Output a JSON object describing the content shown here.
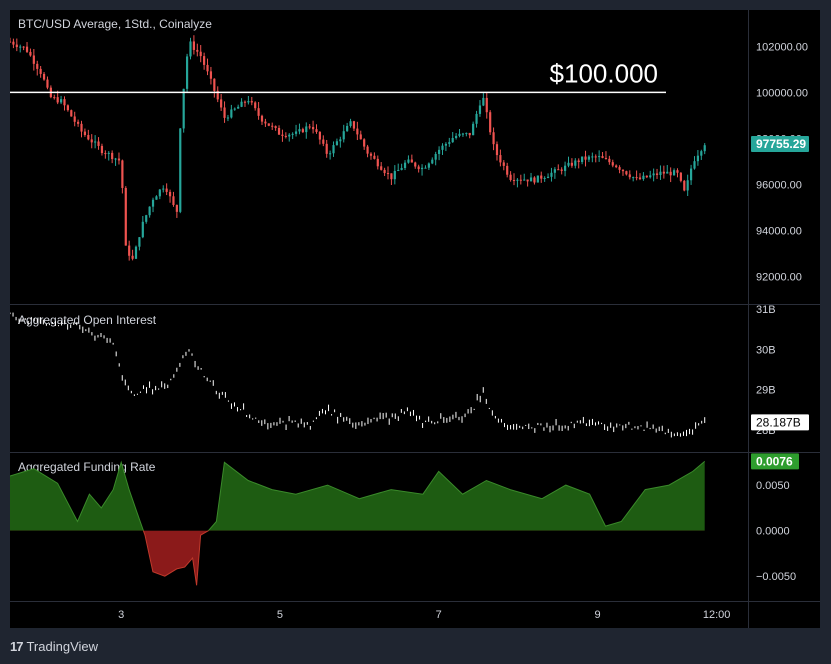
{
  "chart_data": [
    {
      "type": "line",
      "panel": "price",
      "title": "BTC/USD Average, 1Std., Coinalyze",
      "annotation": "$100.000",
      "annotation_level": 100000,
      "last_value_label": "97755.29",
      "last_value": 97755.29,
      "y_ticks": [
        "102000.00",
        "100000.00",
        "98000.00",
        "96000.00",
        "94000.00",
        "92000.00"
      ],
      "ylim": [
        90900,
        103400
      ],
      "x": [
        1.6,
        1.8,
        2.0,
        2.1,
        2.25,
        2.5,
        2.75,
        3.0,
        3.05,
        3.15,
        3.25,
        3.4,
        3.55,
        3.7,
        3.75,
        3.85,
        4.0,
        4.15,
        4.3,
        4.45,
        4.6,
        4.75,
        5.0,
        5.2,
        5.4,
        5.6,
        5.9,
        6.1,
        6.4,
        6.6,
        6.8,
        7.0,
        7.2,
        7.4,
        7.55,
        7.7,
        7.9,
        8.2,
        8.5,
        8.8,
        9.0,
        9.2,
        9.5,
        9.8,
        10.0,
        10.1,
        10.2,
        10.35
      ],
      "y": [
        102200,
        101900,
        100800,
        99800,
        99600,
        98300,
        97500,
        97000,
        93300,
        92700,
        94100,
        95400,
        96000,
        94700,
        99000,
        102200,
        101600,
        100300,
        98900,
        99300,
        99700,
        98900,
        98200,
        98200,
        98600,
        97300,
        98700,
        97400,
        96300,
        97000,
        96700,
        97500,
        98100,
        98200,
        99900,
        97500,
        96300,
        96200,
        96600,
        97100,
        97200,
        96900,
        96200,
        96500,
        96500,
        95600,
        97000,
        97800
      ]
    },
    {
      "type": "line",
      "panel": "open_interest",
      "title": "Aggregated Open Interest",
      "last_value_label": "28.187B",
      "last_value": 28.187,
      "y_ticks": [
        "31B",
        "30B",
        "29B",
        "28B"
      ],
      "ylim": [
        27.5,
        31.05
      ],
      "x": [
        1.6,
        2.0,
        2.5,
        2.9,
        3.05,
        3.15,
        3.3,
        3.6,
        3.75,
        3.85,
        4.0,
        4.2,
        4.6,
        4.8,
        5.2,
        5.4,
        5.6,
        5.8,
        6.0,
        6.4,
        6.6,
        6.8,
        7.0,
        7.2,
        7.4,
        7.55,
        7.7,
        7.9,
        8.2,
        8.6,
        9.0,
        9.4,
        9.8,
        10.0,
        10.15,
        10.35
      ],
      "y": [
        30.85,
        30.7,
        30.55,
        30.15,
        29.1,
        28.9,
        29.0,
        29.15,
        29.7,
        30.05,
        29.5,
        28.95,
        28.4,
        28.15,
        28.2,
        28.15,
        28.5,
        28.3,
        28.15,
        28.35,
        28.45,
        28.2,
        28.25,
        28.35,
        28.4,
        28.95,
        28.3,
        28.05,
        28.1,
        28.15,
        28.15,
        28.1,
        28.0,
        27.85,
        28.0,
        28.187
      ]
    },
    {
      "type": "area",
      "panel": "funding_rate",
      "title": "Aggregated Funding Rate",
      "last_value_label": "0.0076",
      "last_value": 0.0076,
      "y_ticks": [
        "0.0050",
        "0.0000",
        "−0.0050"
      ],
      "ylim": [
        -0.0075,
        0.0083
      ],
      "x": [
        1.6,
        1.9,
        2.2,
        2.45,
        2.6,
        2.75,
        2.9,
        3.0,
        3.1,
        3.2,
        3.3,
        3.4,
        3.55,
        3.7,
        3.8,
        3.9,
        3.95,
        4.0,
        4.1,
        4.2,
        4.3,
        4.6,
        4.9,
        5.2,
        5.6,
        6.0,
        6.4,
        6.8,
        7.0,
        7.3,
        7.6,
        7.9,
        8.3,
        8.6,
        8.9,
        9.1,
        9.3,
        9.6,
        9.9,
        10.2,
        10.35
      ],
      "y": [
        0.006,
        0.0068,
        0.0052,
        0.001,
        0.004,
        0.0025,
        0.0045,
        0.0075,
        0.0045,
        0.002,
        -0.0005,
        -0.0045,
        -0.005,
        -0.0042,
        -0.004,
        -0.003,
        -0.006,
        -0.0005,
        0.0,
        0.001,
        0.0075,
        0.0055,
        0.0045,
        0.004,
        0.005,
        0.0035,
        0.0045,
        0.004,
        0.0065,
        0.004,
        0.0055,
        0.0045,
        0.0035,
        0.005,
        0.004,
        0.0005,
        0.001,
        0.0045,
        0.005,
        0.0065,
        0.0076
      ]
    }
  ],
  "x_axis": {
    "ticks": [
      {
        "label": "3",
        "value": 3
      },
      {
        "label": "5",
        "value": 5
      },
      {
        "label": "7",
        "value": 7
      },
      {
        "label": "9",
        "value": 9
      },
      {
        "label": "12:00",
        "value": 10.5
      }
    ],
    "xlim": [
      1.6,
      10.87
    ]
  },
  "colors": {
    "up": "#26a69a",
    "down": "#ef5350",
    "oi": "#ffffff",
    "funding_pos": "#1e5c12",
    "funding_neg": "#8b1a1a",
    "price_badge": "#26a69a",
    "oi_badge": "#ffffff",
    "funding_badge": "#2e9d2e"
  },
  "footer": {
    "logo": "17",
    "brand": "TradingView"
  }
}
